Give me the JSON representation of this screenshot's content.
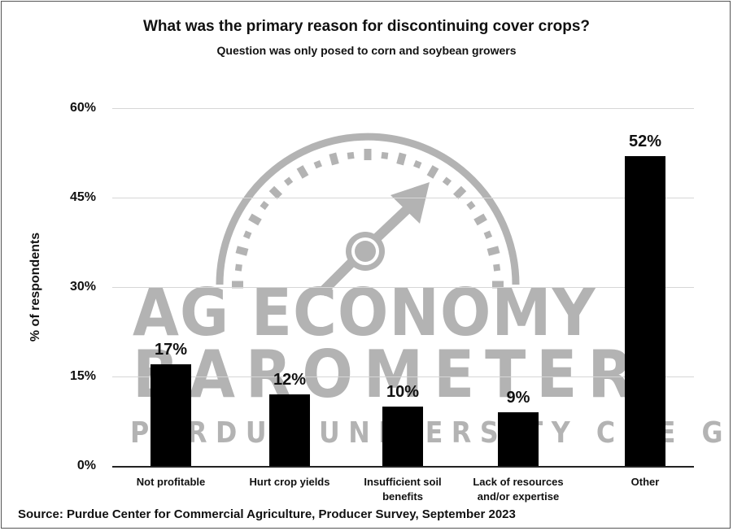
{
  "chart": {
    "title": "What was the primary reason for discontinuing cover crops?",
    "subtitle": "Question was only posed to corn and soybean growers",
    "ylabel": "% of respondents",
    "yticks": [
      "60%",
      "45%",
      "30%",
      "15%",
      "0%"
    ],
    "bars": [
      {
        "category": "Not profitable",
        "category_line2": "",
        "value": 17,
        "label": "17%"
      },
      {
        "category": "Hurt crop yields",
        "category_line2": "",
        "value": 12,
        "label": "12%"
      },
      {
        "category": "Insufficient soil",
        "category_line2": "benefits",
        "value": 10,
        "label": "10%"
      },
      {
        "category": "Lack of resources",
        "category_line2": "and/or expertise",
        "value": 9,
        "label": "9%"
      },
      {
        "category": "Other",
        "category_line2": "",
        "value": 52,
        "label": "52%"
      }
    ],
    "source": "Source: Purdue Center for Commercial Agriculture, Producer Survey, September 2023",
    "watermark": {
      "line1": "AG ECONOMY",
      "line2": "BAROMETER",
      "line3": "PURDUE UNIVERSITY  CME GROUP"
    }
  },
  "colors": {
    "bar": "#000000",
    "gridline": "#d6d6d6",
    "watermark": "#b3b3b3",
    "text": "#111111"
  },
  "chart_data": {
    "type": "bar",
    "title": "What was the primary reason for discontinuing cover crops?",
    "subtitle": "Question was only posed to corn and soybean growers",
    "categories": [
      "Not profitable",
      "Hurt crop yields",
      "Insufficient soil benefits",
      "Lack of resources and/or expertise",
      "Other"
    ],
    "values": [
      17,
      12,
      10,
      9,
      52
    ],
    "data_labels": [
      "17%",
      "12%",
      "10%",
      "9%",
      "52%"
    ],
    "xlabel": "",
    "ylabel": "% of respondents",
    "ylim": [
      0,
      60
    ],
    "yticks": [
      0,
      15,
      30,
      45,
      60
    ],
    "ytick_labels": [
      "0%",
      "15%",
      "30%",
      "45%",
      "60%"
    ],
    "grid": true,
    "legend": null,
    "annotations": [
      "Source: Purdue Center for Commercial Agriculture, Producer Survey, September 2023",
      "Watermark: AG ECONOMY BAROMETER — PURDUE UNIVERSITY / CME GROUP"
    ]
  }
}
